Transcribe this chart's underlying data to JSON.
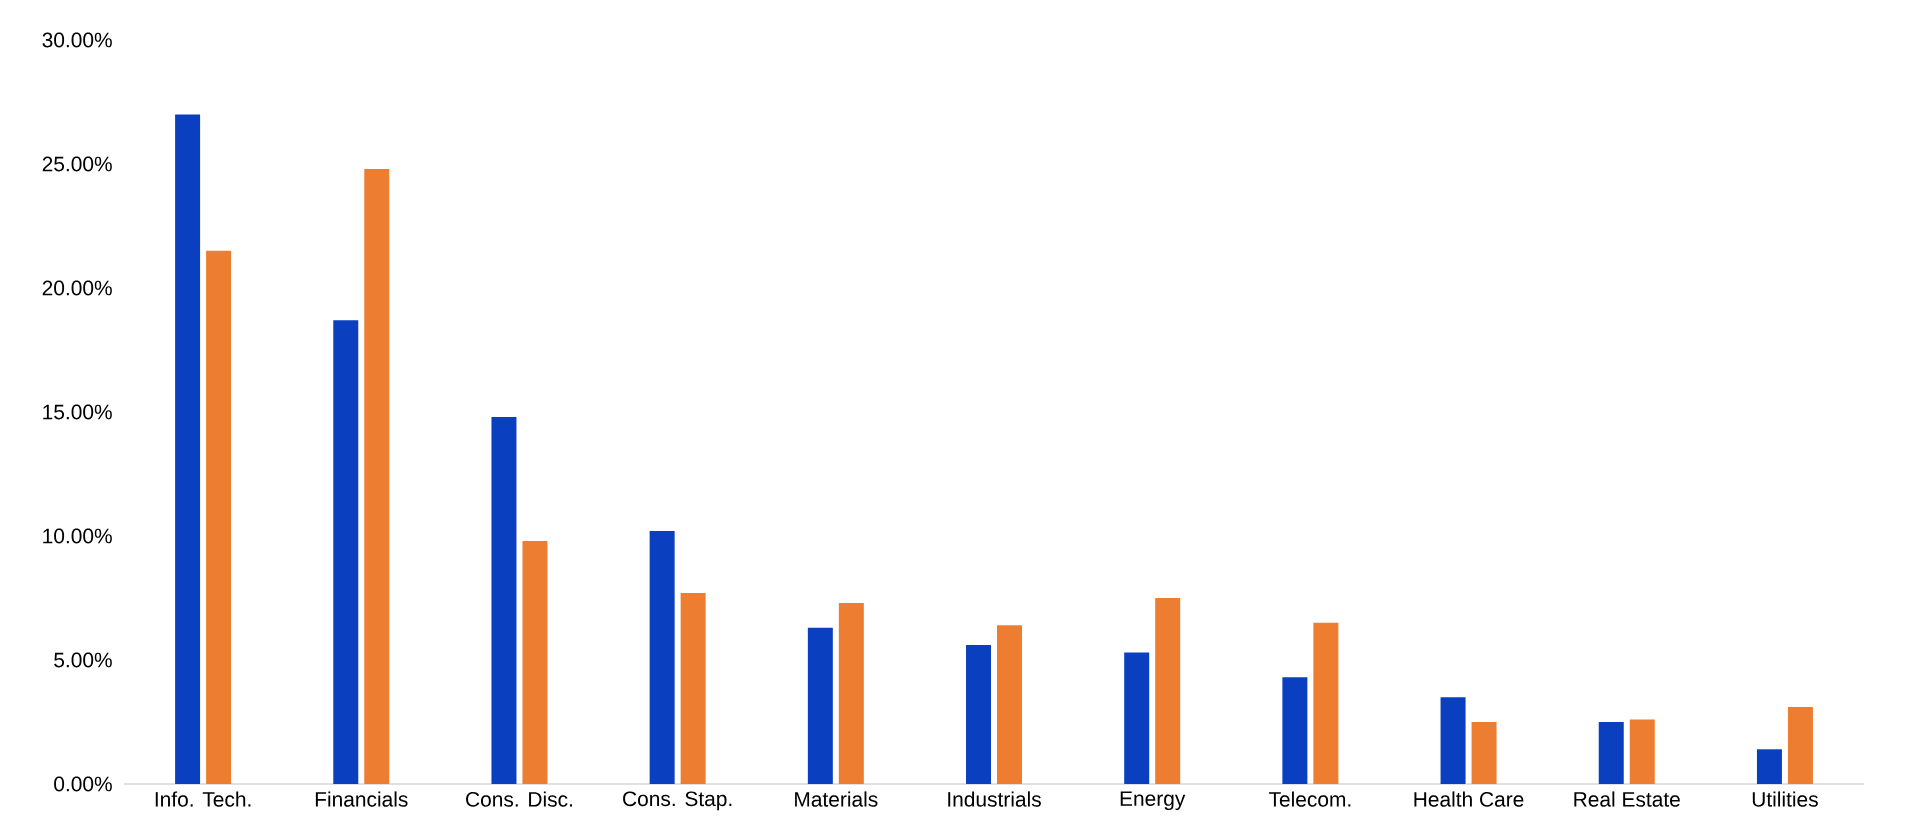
{
  "chart_data": {
    "type": "bar",
    "categories": [
      "Info. Tech.",
      "Financials",
      "Cons. Disc.",
      "Cons. Stap.",
      "Materials",
      "Industrials",
      "Energy",
      "Telecom.",
      "Health Care",
      "Real Estate",
      "Utilities"
    ],
    "series": [
      {
        "color": "#0a3fbf",
        "values": [
          27.0,
          18.7,
          14.8,
          10.2,
          6.3,
          5.6,
          5.3,
          4.3,
          3.5,
          2.5,
          1.4
        ]
      },
      {
        "color": "#ed7d31",
        "values": [
          21.5,
          24.8,
          9.8,
          7.7,
          7.3,
          6.4,
          7.5,
          6.5,
          2.5,
          2.6,
          3.1
        ]
      }
    ],
    "ylim": [
      0,
      30
    ],
    "yticks": [
      {
        "value": 0,
        "label": "0.00%"
      },
      {
        "value": 5,
        "label": "5.00%"
      },
      {
        "value": 10,
        "label": "10.00%"
      },
      {
        "value": 15,
        "label": "15.00%"
      },
      {
        "value": 20,
        "label": "20.00%"
      },
      {
        "value": 25,
        "label": "25.00%"
      },
      {
        "value": 30,
        "label": "30.00%"
      }
    ],
    "grid": false
  }
}
